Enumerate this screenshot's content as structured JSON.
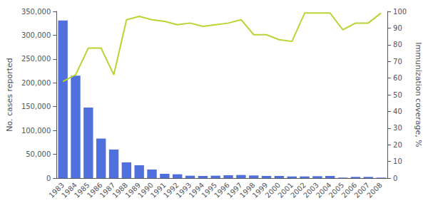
{
  "chart_data": {
    "type": "bar",
    "categories": [
      "1983",
      "1984",
      "1985",
      "1986",
      "1987",
      "1988",
      "1989",
      "1990",
      "1991",
      "1992",
      "1993",
      "1994",
      "1995",
      "1996",
      "1997",
      "1998",
      "1999",
      "2000",
      "2001",
      "2002",
      "2003",
      "2004",
      "2005",
      "2006",
      "2007",
      "2008"
    ],
    "series": [
      {
        "type": "bar",
        "values": [
          331000,
          215000,
          148000,
          83000,
          60000,
          33000,
          27000,
          18000,
          9000,
          8000,
          5000,
          4500,
          5000,
          6000,
          6500,
          5500,
          4500,
          4500,
          3500,
          3500,
          4000,
          4500,
          1000,
          2500,
          2500,
          1000
        ]
      },
      {
        "type": "line",
        "axis": "y2",
        "values": [
          58,
          62,
          78,
          78,
          62,
          95,
          97,
          95,
          94,
          92,
          93,
          91,
          92,
          93,
          95,
          86,
          86,
          83,
          82,
          99,
          99,
          99,
          89,
          93,
          93,
          99
        ]
      }
    ],
    "ylabel": "No. cases reported",
    "y2label": "Immunization coverage, %",
    "ylim": [
      0,
      350000
    ],
    "yticks": [
      0,
      {
        "value": 50000,
        "label": "50,000"
      },
      {
        "value": 100000,
        "label": "100,000"
      },
      {
        "value": 150000,
        "label": "150,000"
      },
      {
        "value": 200000,
        "label": "200,000"
      },
      {
        "value": 250000,
        "label": "250,000"
      },
      {
        "value": 300000,
        "label": "300,000"
      },
      {
        "value": 350000,
        "label": "350,000"
      }
    ],
    "y2lim": [
      0,
      100
    ],
    "y2ticks": [
      0,
      10,
      20,
      30,
      40,
      50,
      60,
      70,
      80,
      90,
      100
    ],
    "grid": false
  }
}
